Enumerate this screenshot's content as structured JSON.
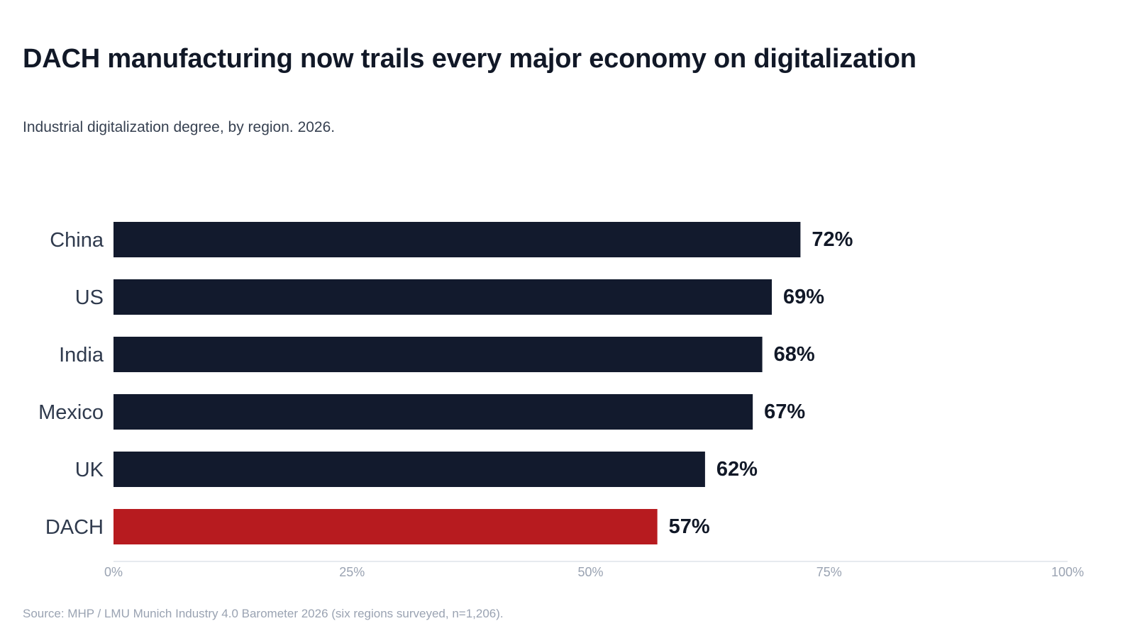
{
  "title": "DACH manufacturing now trails every major economy on digitalization",
  "subtitle": "Industrial digitalization degree, by region. 2026.",
  "source": "Source: MHP / LMU Munich Industry 4.0 Barometer 2026 (six regions surveyed, n=1,206).",
  "colors": {
    "bar": "#121a2d",
    "highlight": "#b71b1f",
    "axis": "#dfe3ea"
  },
  "chart_data": {
    "type": "bar",
    "orientation": "horizontal",
    "categories": [
      "China",
      "US",
      "India",
      "Mexico",
      "UK",
      "DACH"
    ],
    "values": [
      72,
      69,
      68,
      67,
      62,
      57
    ],
    "value_labels": [
      "72%",
      "69%",
      "68%",
      "67%",
      "62%",
      "57%"
    ],
    "highlight_category": "DACH",
    "xlim": [
      0,
      100
    ],
    "xticks": [
      0,
      25,
      50,
      75,
      100
    ],
    "xtick_labels": [
      "0%",
      "25%",
      "50%",
      "75%",
      "100%"
    ],
    "grid": false,
    "legend": "none"
  }
}
